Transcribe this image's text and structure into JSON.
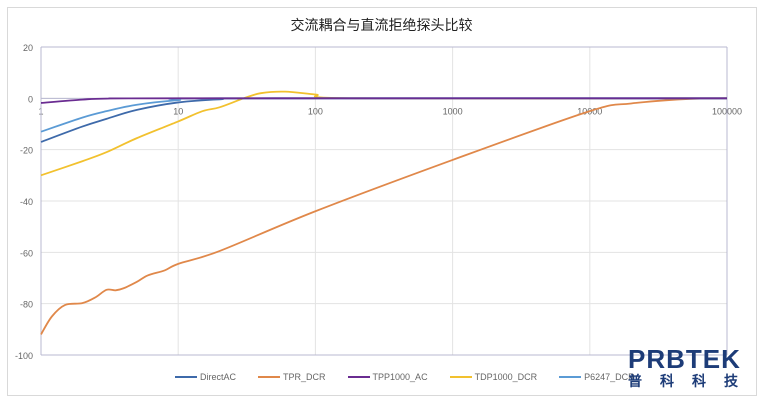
{
  "chart_data": {
    "type": "line",
    "title": "交流耦合与直流拒绝探头比较",
    "xscale": "log",
    "xlim": [
      1,
      100000
    ],
    "ylim": [
      -100,
      20
    ],
    "x_ticks": [
      "1",
      "10",
      "100",
      "1000",
      "10000",
      "100000"
    ],
    "y_ticks": [
      "20",
      "0",
      "-20",
      "-40",
      "-60",
      "-80",
      "-100"
    ],
    "grid": true,
    "legend": "bottom",
    "series": [
      {
        "name": "DirectAC",
        "color": "#3e6aaa",
        "points": [
          [
            1,
            -17
          ],
          [
            2,
            -11
          ],
          [
            3,
            -8
          ],
          [
            5,
            -4.5
          ],
          [
            10,
            -1.6
          ],
          [
            20,
            -0.4
          ],
          [
            50,
            0
          ],
          [
            100000,
            0
          ]
        ]
      },
      {
        "name": "TPR_DCR",
        "color": "#e0884a",
        "points": [
          [
            1,
            -92
          ],
          [
            1.2,
            -85
          ],
          [
            1.5,
            -80.5
          ],
          [
            2,
            -79.8
          ],
          [
            2.5,
            -77.5
          ],
          [
            3,
            -74.6
          ],
          [
            3.5,
            -74.8
          ],
          [
            4,
            -74
          ],
          [
            5,
            -71.5
          ],
          [
            6,
            -69
          ],
          [
            8,
            -67
          ],
          [
            10,
            -64.5
          ],
          [
            20,
            -59.5
          ],
          [
            100,
            -44
          ],
          [
            1000,
            -24
          ],
          [
            10000,
            -5
          ],
          [
            20000,
            -2
          ],
          [
            50000,
            -0.3
          ],
          [
            100000,
            0
          ]
        ]
      },
      {
        "name": "TPP1000_AC",
        "color": "#6a2c91",
        "points": [
          [
            1,
            -1.8
          ],
          [
            2,
            -0.5
          ],
          [
            3,
            -0.1
          ],
          [
            10,
            0
          ],
          [
            100000,
            0
          ]
        ]
      },
      {
        "name": "TDP1000_DCR",
        "color": "#f2c12e",
        "points": [
          [
            1,
            -30
          ],
          [
            2,
            -24.5
          ],
          [
            3,
            -21
          ],
          [
            5,
            -15.5
          ],
          [
            10,
            -9
          ],
          [
            15,
            -5
          ],
          [
            20,
            -3.5
          ],
          [
            30,
            0
          ],
          [
            40,
            2
          ],
          [
            60,
            2.6
          ],
          [
            100,
            1.5
          ],
          [
            200,
            0
          ],
          [
            100000,
            0
          ]
        ]
      },
      {
        "name": "P6247_DCR",
        "color": "#5b9bd5",
        "points": [
          [
            1,
            -13
          ],
          [
            2,
            -7.5
          ],
          [
            3,
            -5
          ],
          [
            5,
            -2.5
          ],
          [
            10,
            -0.7
          ],
          [
            20,
            0
          ],
          [
            100000,
            0
          ]
        ]
      }
    ]
  },
  "logo": {
    "text": "PRBTEK",
    "subtitle": "普科科技"
  }
}
